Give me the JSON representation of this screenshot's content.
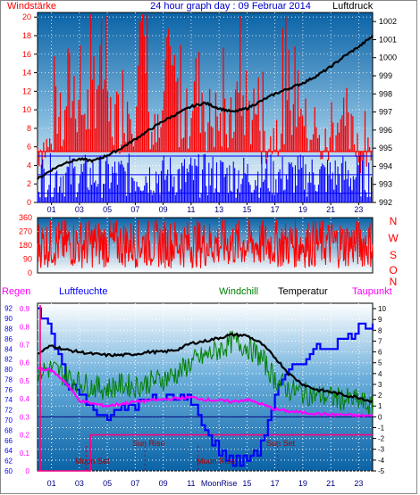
{
  "header": {
    "left_label": "Windstärke",
    "title": "24 hour graph day : 09 Februar 2014",
    "right_label": "Luftdruck"
  },
  "colors": {
    "frame": "#000000",
    "wind": "#ff0000",
    "gust": "#0000ff",
    "pressure": "#000000",
    "sky_top": "#0c6fb0",
    "sky_bottom": "#ffffff",
    "humidity": "#0000ff",
    "windchill": "#008000",
    "temperature": "#000000",
    "dewpoint": "#ff00ff",
    "rain": "#ff0080",
    "hline": "#000080"
  },
  "time_ticks": [
    "01",
    "03",
    "05",
    "07",
    "09",
    "11",
    "13",
    "15",
    "17",
    "19",
    "21",
    "23"
  ],
  "compass": [
    "N",
    "W",
    "S",
    "O",
    "N"
  ],
  "chart_data": [
    {
      "type": "line",
      "id": "wind_pressure",
      "ylabel_left": "Windstärke",
      "ylabel_right": "Luftdruck",
      "yleft_ticks": [
        0,
        2,
        4,
        6,
        8,
        10,
        12,
        14,
        16,
        18,
        20
      ],
      "yright_ticks": [
        992,
        993,
        994,
        995,
        996,
        997,
        998,
        999,
        1000,
        1001,
        1002
      ],
      "ylim_left": [
        0,
        20.5
      ],
      "ylim_right": [
        992,
        1002.5
      ],
      "series": [
        {
          "name": "Windstärke",
          "color": "#ff0000",
          "y_wind_avg_pattern": [
            6,
            8,
            12,
            10,
            14,
            9,
            11,
            16,
            7,
            13,
            10,
            12,
            9,
            8,
            11,
            10,
            7,
            9,
            12,
            8,
            6,
            9,
            7,
            5
          ]
        },
        {
          "name": "Luftdruck",
          "hours": [
            0,
            1,
            2,
            3,
            4,
            5,
            6,
            7,
            8,
            9,
            10,
            11,
            12,
            13,
            14,
            15,
            16,
            17,
            18,
            19,
            20,
            21,
            22,
            23,
            24
          ],
          "values": [
            993.3,
            993.8,
            994.2,
            994.4,
            994.3,
            994.6,
            995.0,
            995.5,
            996.0,
            996.5,
            996.9,
            997.3,
            997.5,
            997.2,
            997.0,
            997.2,
            997.6,
            998.0,
            998.3,
            998.6,
            999.0,
            999.5,
            1000.1,
            1000.6,
            1001.2
          ]
        }
      ]
    },
    {
      "type": "scatter",
      "id": "wind_direction",
      "ylim": [
        0,
        360
      ],
      "yticks": [
        0,
        90,
        180,
        270,
        360
      ]
    },
    {
      "type": "line",
      "id": "temperature",
      "left_labels": [
        "Regen",
        "Luftfeuchte"
      ],
      "right_labels": [
        "Windchill",
        "Temperatur",
        "Taupunkt"
      ],
      "regen_ticks": [
        0,
        0.1,
        0.2,
        0.3,
        0.4,
        0.5,
        0.6,
        0.7,
        0.8,
        0.9
      ],
      "humidity_ticks": [
        60,
        62,
        64,
        66,
        68,
        70,
        72,
        74,
        76,
        78,
        80,
        82,
        84,
        86,
        88,
        90,
        92
      ],
      "temp_ticks": [
        -5,
        -4,
        -3,
        -2,
        -1,
        0,
        1,
        2,
        3,
        4,
        5,
        6,
        7,
        8,
        9,
        10
      ],
      "temp_range": [
        -5,
        10
      ],
      "humidity_range": [
        60,
        93
      ],
      "series": [
        {
          "name": "Temperatur",
          "hours": [
            0,
            1,
            2,
            3,
            4,
            5,
            6,
            7,
            8,
            9,
            10,
            11,
            12,
            13,
            14,
            15,
            16,
            17,
            18,
            19,
            20,
            21,
            22,
            23,
            24
          ],
          "values": [
            5.8,
            6.6,
            6.2,
            6.0,
            5.8,
            5.7,
            5.7,
            5.8,
            6.0,
            6.0,
            6.2,
            6.8,
            7.0,
            7.3,
            7.6,
            7.5,
            6.8,
            5.5,
            4.0,
            3.0,
            2.5,
            2.3,
            2.0,
            1.8,
            1.4
          ]
        },
        {
          "name": "Windchill",
          "hours": [
            0,
            1,
            2,
            3,
            4,
            5,
            6,
            7,
            8,
            9,
            10,
            11,
            12,
            13,
            14,
            15,
            16,
            17,
            18,
            19,
            20,
            21,
            22,
            23,
            24
          ],
          "values": [
            4.2,
            4.5,
            3.8,
            3.2,
            2.8,
            2.6,
            3.0,
            2.8,
            3.2,
            3.5,
            4.0,
            5.0,
            5.6,
            6.2,
            7.0,
            6.5,
            5.5,
            3.5,
            2.5,
            2.2,
            2.0,
            1.8,
            1.6,
            1.5,
            0.8
          ]
        },
        {
          "name": "Taupunkt",
          "hours": [
            0,
            1,
            2,
            3,
            4,
            5,
            6,
            7,
            8,
            9,
            10,
            11,
            12,
            13,
            14,
            15,
            16,
            17,
            18,
            19,
            20,
            21,
            22,
            23,
            24
          ],
          "values": [
            4.5,
            4.3,
            3.2,
            1.5,
            1.2,
            1.0,
            1.2,
            1.4,
            1.5,
            1.6,
            1.7,
            1.8,
            1.6,
            1.5,
            1.4,
            1.6,
            1.2,
            0.7,
            0.5,
            0.4,
            0.3,
            0.2,
            0.2,
            0.1,
            0.1
          ]
        },
        {
          "name": "Luftfeuchte",
          "hours": [
            0,
            1,
            2,
            3,
            4,
            5,
            6,
            7,
            8,
            9,
            10,
            11,
            12,
            13,
            14,
            15,
            16,
            17,
            18,
            19,
            20,
            21,
            22,
            23,
            24
          ],
          "values": [
            92,
            87,
            78,
            75,
            72,
            71,
            72,
            73,
            74,
            74,
            75,
            74,
            68,
            64,
            62,
            62,
            65,
            75,
            80,
            82,
            84,
            85,
            86,
            88,
            89
          ]
        },
        {
          "name": "Regen",
          "hours": [
            0,
            3.8,
            3.8,
            24
          ],
          "values": [
            0,
            0,
            0.2,
            0.2
          ]
        }
      ]
    }
  ],
  "annotations": {
    "moon_set_1": "Moon Set",
    "sun_rise": "Sun Rise",
    "moon_rise": "Moon Rise",
    "sun_set": "Sun Set",
    "moon_rise_bottom": "MoonRise"
  }
}
